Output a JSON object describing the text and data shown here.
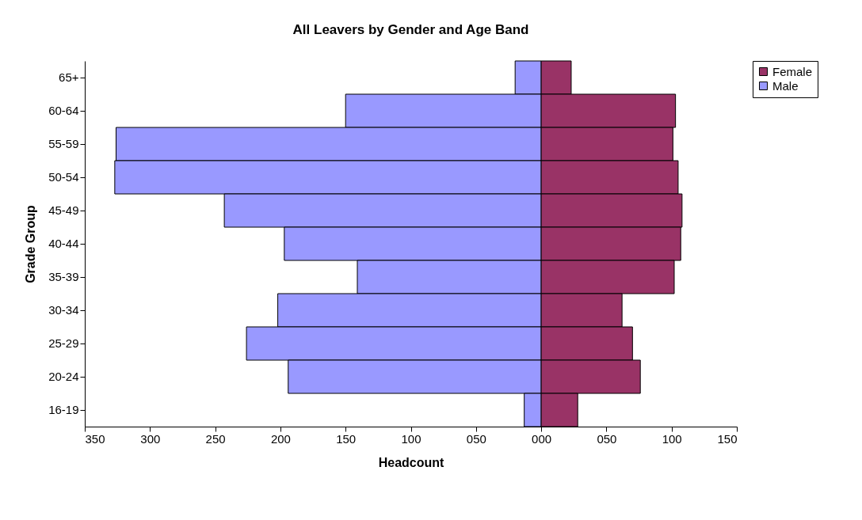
{
  "chart_data": {
    "type": "bar",
    "title": "All Leavers by Gender and Age Band",
    "xlabel": "Headcount",
    "ylabel": "Grade Group",
    "orientation": "horizontal",
    "stacked": true,
    "legend": "right",
    "grid": false,
    "categories": [
      "65+",
      "60-64",
      "55-59",
      "50-54",
      "45-49",
      "40-44",
      "35-39",
      "30-34",
      "25-29",
      "20-24",
      "16-19"
    ],
    "series": [
      {
        "name": "Male",
        "color": "#9999ff",
        "values": [
          -20,
          -150,
          -326,
          -327,
          -243,
          -197,
          -141,
          -202,
          -226,
          -194,
          -13
        ]
      },
      {
        "name": "Female",
        "color": "#993366",
        "values": [
          23,
          103,
          101,
          105,
          108,
          107,
          102,
          62,
          70,
          76,
          28
        ]
      }
    ],
    "xlim": [
      -350,
      150
    ],
    "xticks": [
      {
        "value": -350,
        "label": "350"
      },
      {
        "value": -300,
        "label": "300"
      },
      {
        "value": -250,
        "label": "250"
      },
      {
        "value": -200,
        "label": "200"
      },
      {
        "value": -150,
        "label": "150"
      },
      {
        "value": -100,
        "label": "100"
      },
      {
        "value": -50,
        "label": "050"
      },
      {
        "value": 0,
        "label": "000"
      },
      {
        "value": 50,
        "label": "050"
      },
      100,
      150
    ]
  }
}
